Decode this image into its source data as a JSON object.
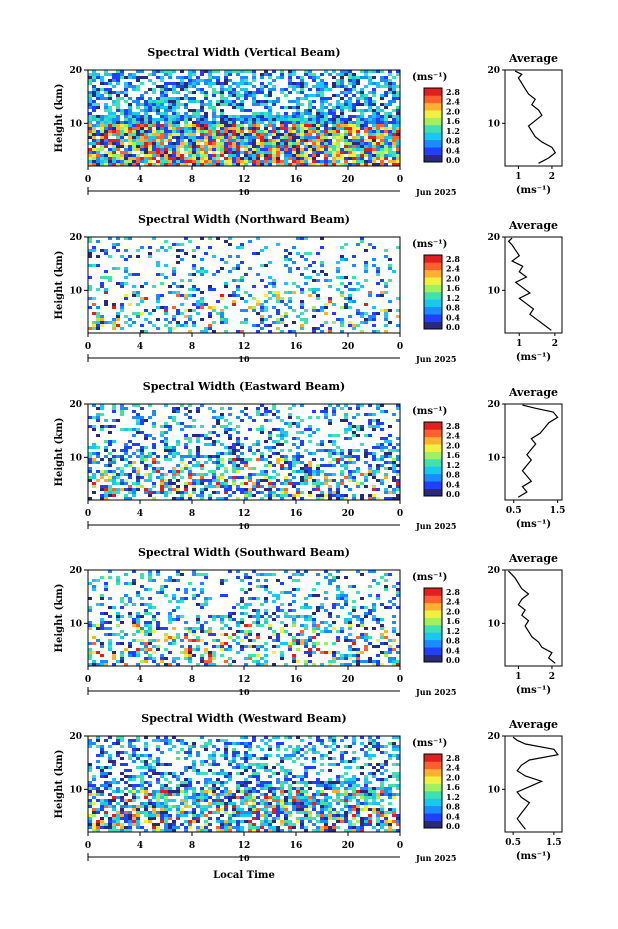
{
  "figure": {
    "xlabel": "Local Time",
    "date_label": "Jun 2025",
    "date_marker": "10",
    "unit_label": "(ms⁻¹)",
    "profile_title": "Average",
    "profile_xlabel": "(ms⁻¹)",
    "ylabel": "Height (km)"
  },
  "colorbar": {
    "ticks": [
      "2.8",
      "2.4",
      "2.0",
      "1.6",
      "1.2",
      "0.8",
      "0.4",
      "0.0"
    ],
    "colors": [
      "#2a2a7a",
      "#2040ff",
      "#1a8cff",
      "#19c8f0",
      "#40e0b0",
      "#a0f060",
      "#f0f040",
      "#ffb030",
      "#ff6030",
      "#e02020"
    ]
  },
  "chart_data": [
    {
      "type": "heatmap",
      "title": "Spectral Width (Vertical Beam)",
      "x_ticks": [
        "0",
        "4",
        "8",
        "12",
        "16",
        "20",
        "0"
      ],
      "y_ticks": [
        "20",
        "10"
      ],
      "xlim": [
        0,
        24
      ],
      "ylim": [
        2,
        20
      ],
      "profile": {
        "type": "line",
        "x_ticks": [
          "1",
          "2"
        ],
        "xlim": [
          0.6,
          2.3
        ],
        "y_ticks": [
          "20",
          "10"
        ],
        "ylim": [
          2,
          20
        ],
        "x": [
          1.6,
          1.9,
          2.1,
          2.0,
          1.7,
          1.5,
          1.4,
          1.3,
          1.5,
          1.7,
          1.6,
          1.4,
          1.5,
          1.3,
          1.2,
          1.1,
          1.0,
          1.1,
          0.9
        ],
        "y": [
          2.5,
          3.5,
          4.5,
          5.5,
          6.5,
          7.5,
          8.5,
          9.5,
          10.5,
          11.5,
          12.5,
          13.5,
          14.5,
          15.5,
          16.5,
          17.5,
          18.5,
          19.2,
          19.8
        ]
      }
    },
    {
      "type": "heatmap",
      "title": "Spectral Width (Northward Beam)",
      "x_ticks": [
        "0",
        "4",
        "8",
        "12",
        "16",
        "20",
        "0"
      ],
      "y_ticks": [
        "20",
        "10"
      ],
      "xlim": [
        0,
        24
      ],
      "ylim": [
        2,
        20
      ],
      "profile": {
        "type": "line",
        "x_ticks": [
          "1",
          "2"
        ],
        "xlim": [
          0.6,
          2.2
        ],
        "y_ticks": [
          "20",
          "10"
        ],
        "ylim": [
          2,
          20
        ],
        "x": [
          1.9,
          1.7,
          1.5,
          1.3,
          1.4,
          1.2,
          1.0,
          1.3,
          1.1,
          0.9,
          1.2,
          1.0,
          1.1,
          0.8,
          1.0,
          0.9,
          0.8,
          0.7,
          0.8
        ],
        "y": [
          2.5,
          3.5,
          4.5,
          5.5,
          6.5,
          7.5,
          8.5,
          9.5,
          10.5,
          11.5,
          12.5,
          13.5,
          14.5,
          15.5,
          16.5,
          17.5,
          18.5,
          19.2,
          19.8
        ]
      }
    },
    {
      "type": "heatmap",
      "title": "Spectral Width (Eastward Beam)",
      "x_ticks": [
        "0",
        "4",
        "8",
        "12",
        "16",
        "20",
        "0"
      ],
      "y_ticks": [
        "20",
        "10"
      ],
      "xlim": [
        0,
        24
      ],
      "ylim": [
        2,
        20
      ],
      "profile": {
        "type": "line",
        "x_ticks": [
          "0.5",
          "1.5"
        ],
        "xlim": [
          0.3,
          1.6
        ],
        "y_ticks": [
          "20",
          "10"
        ],
        "ylim": [
          2,
          20
        ],
        "x": [
          0.6,
          0.8,
          0.7,
          0.9,
          0.8,
          0.7,
          0.8,
          0.9,
          0.8,
          0.9,
          1.0,
          0.9,
          1.1,
          1.2,
          1.3,
          1.5,
          1.4,
          1.0,
          0.7
        ],
        "y": [
          2.5,
          3.5,
          4.5,
          5.5,
          6.5,
          7.5,
          8.5,
          9.5,
          10.5,
          11.5,
          12.5,
          13.5,
          14.5,
          15.5,
          16.5,
          17.5,
          18.5,
          19.2,
          19.8
        ]
      }
    },
    {
      "type": "heatmap",
      "title": "Spectral Width (Southward Beam)",
      "x_ticks": [
        "0",
        "4",
        "8",
        "12",
        "16",
        "20",
        "0"
      ],
      "y_ticks": [
        "20",
        "10"
      ],
      "xlim": [
        0,
        24
      ],
      "ylim": [
        2,
        20
      ],
      "profile": {
        "type": "line",
        "x_ticks": [
          "1",
          "2"
        ],
        "xlim": [
          0.6,
          2.3
        ],
        "y_ticks": [
          "20",
          "10"
        ],
        "ylim": [
          2,
          20
        ],
        "x": [
          2.1,
          1.9,
          2.0,
          1.7,
          1.6,
          1.4,
          1.3,
          1.2,
          1.3,
          1.1,
          1.2,
          1.0,
          1.1,
          1.3,
          1.1,
          1.0,
          0.9,
          0.8,
          0.7
        ],
        "y": [
          2.5,
          3.5,
          4.5,
          5.5,
          6.5,
          7.5,
          8.5,
          9.5,
          10.5,
          11.5,
          12.5,
          13.5,
          14.5,
          15.5,
          16.5,
          17.5,
          18.5,
          19.2,
          19.8
        ]
      }
    },
    {
      "type": "heatmap",
      "title": "Spectral Width (Westward Beam)",
      "x_ticks": [
        "0",
        "4",
        "8",
        "12",
        "16",
        "20",
        "0"
      ],
      "y_ticks": [
        "20",
        "10"
      ],
      "xlim": [
        0,
        24
      ],
      "ylim": [
        2,
        20
      ],
      "profile": {
        "type": "line",
        "x_ticks": [
          "0.5",
          "1.5"
        ],
        "xlim": [
          0.3,
          1.7
        ],
        "y_ticks": [
          "20",
          "10"
        ],
        "ylim": [
          2,
          20
        ],
        "x": [
          0.8,
          0.7,
          0.6,
          0.7,
          0.8,
          0.9,
          0.7,
          0.6,
          0.9,
          1.2,
          0.8,
          0.6,
          0.7,
          0.9,
          1.6,
          1.5,
          0.8,
          0.6,
          0.5
        ],
        "y": [
          2.5,
          3.5,
          4.5,
          5.5,
          6.5,
          7.5,
          8.5,
          9.5,
          10.5,
          11.5,
          12.5,
          13.5,
          14.5,
          15.5,
          16.5,
          17.5,
          18.5,
          19.2,
          19.8
        ]
      }
    }
  ]
}
